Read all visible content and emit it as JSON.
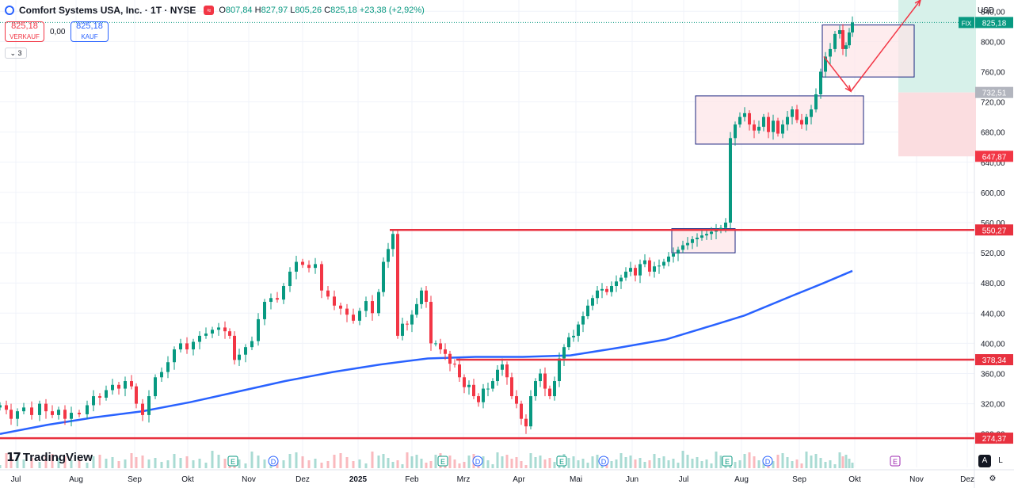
{
  "header": {
    "title": "Comfort Systems USA, Inc. · 1T · NYSE",
    "badge": "≈",
    "ohlc": {
      "o_label": "O",
      "o": "807,84",
      "h_label": "H",
      "h": "827,97",
      "l_label": "L",
      "l": "805,26",
      "c_label": "C",
      "c": "825,18",
      "change": "+23,38 (+2,92%)"
    }
  },
  "trade": {
    "sell_price": "825,18",
    "sell_label": "VERKAUF",
    "spread": "0,00",
    "buy_price": "825,18",
    "buy_label": "KAUF"
  },
  "indicator_toggle": "3",
  "brand": {
    "name": "TradingView",
    "mark": "17"
  },
  "currency": "USD",
  "corner": {
    "auto": "A",
    "log": "L"
  },
  "colors": {
    "up": "#089981",
    "down": "#f23645",
    "ma": "#2962ff",
    "level": "#e8313f",
    "box_border": "#1a237e",
    "box_fill": "#fde4e7",
    "profit": "#d7f1ea",
    "loss": "#fbdde0",
    "grid": "#f0f3fa",
    "text": "#131722"
  },
  "chart_data": {
    "type": "candlestick",
    "x": [
      "Jul",
      "Aug",
      "Sep",
      "Okt",
      "Nov",
      "Dez",
      "2025",
      "Feb",
      "Mrz",
      "Apr",
      "Mai",
      "Jun",
      "Jul",
      "Aug",
      "Sep",
      "Okt",
      "Nov",
      "Dez"
    ],
    "y_ticks": [
      "840,00",
      "800,00",
      "760,00",
      "720,00",
      "680,00",
      "640,00",
      "600,00",
      "560,00",
      "520,00",
      "480,00",
      "440,00",
      "400,00",
      "360,00",
      "320,00",
      "280,00"
    ],
    "ylim": [
      265,
      855
    ],
    "price_path": [
      [
        0,
        318
      ],
      [
        8,
        312
      ],
      [
        14,
        300
      ],
      [
        22,
        310
      ],
      [
        30,
        315
      ],
      [
        40,
        305
      ],
      [
        50,
        320
      ],
      [
        58,
        310
      ],
      [
        66,
        305
      ],
      [
        74,
        312
      ],
      [
        82,
        300
      ],
      [
        90,
        308
      ],
      [
        100,
        306
      ],
      [
        110,
        318
      ],
      [
        118,
        330
      ],
      [
        126,
        328
      ],
      [
        134,
        338
      ],
      [
        142,
        345
      ],
      [
        150,
        340
      ],
      [
        158,
        350
      ],
      [
        166,
        343
      ],
      [
        172,
        320
      ],
      [
        180,
        305
      ],
      [
        188,
        330
      ],
      [
        196,
        355
      ],
      [
        204,
        362
      ],
      [
        212,
        375
      ],
      [
        220,
        392
      ],
      [
        228,
        400
      ],
      [
        236,
        392
      ],
      [
        244,
        402
      ],
      [
        252,
        410
      ],
      [
        260,
        413
      ],
      [
        268,
        418
      ],
      [
        276,
        421
      ],
      [
        284,
        416
      ],
      [
        290,
        410
      ],
      [
        296,
        378
      ],
      [
        302,
        385
      ],
      [
        310,
        395
      ],
      [
        318,
        403
      ],
      [
        326,
        432
      ],
      [
        334,
        455
      ],
      [
        342,
        460
      ],
      [
        350,
        458
      ],
      [
        358,
        476
      ],
      [
        366,
        495
      ],
      [
        374,
        508
      ],
      [
        382,
        504
      ],
      [
        390,
        500
      ],
      [
        398,
        505
      ],
      [
        406,
        470
      ],
      [
        414,
        462
      ],
      [
        422,
        450
      ],
      [
        430,
        446
      ],
      [
        438,
        438
      ],
      [
        446,
        430
      ],
      [
        454,
        443
      ],
      [
        462,
        456
      ],
      [
        470,
        440
      ],
      [
        478,
        468
      ],
      [
        484,
        508
      ],
      [
        490,
        525
      ],
      [
        496,
        545
      ],
      [
        502,
        410
      ],
      [
        508,
        426
      ],
      [
        514,
        425
      ],
      [
        520,
        438
      ],
      [
        526,
        452
      ],
      [
        532,
        470
      ],
      [
        538,
        455
      ],
      [
        544,
        400
      ],
      [
        550,
        400
      ],
      [
        556,
        392
      ],
      [
        562,
        386
      ],
      [
        568,
        373
      ],
      [
        574,
        372
      ],
      [
        580,
        355
      ],
      [
        586,
        342
      ],
      [
        592,
        345
      ],
      [
        598,
        330
      ],
      [
        604,
        322
      ],
      [
        610,
        340
      ],
      [
        616,
        340
      ],
      [
        622,
        350
      ],
      [
        628,
        365
      ],
      [
        634,
        372
      ],
      [
        640,
        355
      ],
      [
        646,
        330
      ],
      [
        652,
        320
      ],
      [
        658,
        300
      ],
      [
        664,
        290
      ],
      [
        670,
        330
      ],
      [
        676,
        350
      ],
      [
        682,
        360
      ],
      [
        688,
        340
      ],
      [
        694,
        330
      ],
      [
        700,
        350
      ],
      [
        706,
        380
      ],
      [
        712,
        395
      ],
      [
        718,
        408
      ],
      [
        724,
        410
      ],
      [
        730,
        425
      ],
      [
        736,
        436
      ],
      [
        742,
        450
      ],
      [
        748,
        460
      ],
      [
        754,
        470
      ],
      [
        760,
        472
      ],
      [
        766,
        468
      ],
      [
        772,
        476
      ],
      [
        778,
        482
      ],
      [
        784,
        487
      ],
      [
        790,
        495
      ],
      [
        796,
        500
      ],
      [
        802,
        490
      ],
      [
        808,
        505
      ],
      [
        814,
        510
      ],
      [
        820,
        495
      ],
      [
        826,
        502
      ],
      [
        832,
        503
      ],
      [
        838,
        508
      ],
      [
        844,
        515
      ],
      [
        850,
        519
      ],
      [
        856,
        524
      ],
      [
        862,
        530
      ],
      [
        868,
        533
      ],
      [
        874,
        538
      ],
      [
        880,
        540
      ],
      [
        886,
        543
      ],
      [
        892,
        545
      ],
      [
        898,
        548
      ],
      [
        904,
        550
      ],
      [
        910,
        553
      ],
      [
        916,
        560
      ],
      [
        922,
        672
      ],
      [
        928,
        690
      ],
      [
        934,
        700
      ],
      [
        940,
        705
      ],
      [
        946,
        690
      ],
      [
        952,
        682
      ],
      [
        958,
        687
      ],
      [
        964,
        700
      ],
      [
        970,
        680
      ],
      [
        976,
        695
      ],
      [
        982,
        678
      ],
      [
        988,
        690
      ],
      [
        994,
        700
      ],
      [
        1000,
        710
      ],
      [
        1006,
        696
      ],
      [
        1012,
        690
      ],
      [
        1018,
        700
      ],
      [
        1024,
        710
      ],
      [
        1030,
        730
      ],
      [
        1036,
        760
      ],
      [
        1042,
        780
      ],
      [
        1048,
        790
      ],
      [
        1054,
        810
      ],
      [
        1060,
        815
      ],
      [
        1064,
        790
      ],
      [
        1068,
        795
      ],
      [
        1072,
        812
      ],
      [
        1076,
        825.18
      ]
    ],
    "moving_average": [
      [
        0,
        280
      ],
      [
        60,
        292
      ],
      [
        120,
        302
      ],
      [
        180,
        310
      ],
      [
        240,
        322
      ],
      [
        300,
        336
      ],
      [
        360,
        350
      ],
      [
        420,
        362
      ],
      [
        480,
        372
      ],
      [
        540,
        380
      ],
      [
        600,
        382
      ],
      [
        660,
        382
      ],
      [
        720,
        384
      ],
      [
        780,
        394
      ],
      [
        840,
        405
      ],
      [
        900,
        424
      ],
      [
        940,
        437
      ],
      [
        1000,
        463
      ],
      [
        1040,
        480
      ],
      [
        1076,
        496
      ]
    ],
    "levels": [
      {
        "price": 550.27,
        "label": "550,27",
        "x_start": 492
      },
      {
        "price": 378.34,
        "label": "378,34",
        "x_start": 576
      },
      {
        "price": 274.37,
        "label": "274,37",
        "x_start": 0
      }
    ],
    "axis_labels": [
      {
        "price": 825.18,
        "label": "825,18",
        "kind": "last"
      },
      {
        "price": 732.51,
        "label": "732,51",
        "kind": "neutral"
      },
      {
        "price": 647.87,
        "label": "647,87",
        "kind": "loss"
      }
    ],
    "last_tag": "FIX",
    "boxes": [
      {
        "x1": 848,
        "x2": 928,
        "top": 552,
        "bottom": 520
      },
      {
        "x1": 878,
        "x2": 1090,
        "top": 728,
        "bottom": 664
      },
      {
        "x1": 1038,
        "x2": 1154,
        "top": 822,
        "bottom": 753
      }
    ],
    "position_zone": {
      "x1": 1134,
      "x2": 1232,
      "entry": 732.51,
      "target": 855,
      "stop": 647.87
    },
    "arrows": [
      {
        "from": [
          1040,
          780
        ],
        "to": [
          1074,
          734
        ]
      },
      {
        "from": [
          1074,
          734
        ],
        "to": [
          1162,
          855
        ]
      }
    ],
    "events": [
      {
        "x": 294,
        "kind": "E"
      },
      {
        "x": 345,
        "kind": "D"
      },
      {
        "x": 559,
        "kind": "E"
      },
      {
        "x": 603,
        "kind": "D"
      },
      {
        "x": 709,
        "kind": "E"
      },
      {
        "x": 762,
        "kind": "D"
      },
      {
        "x": 918,
        "kind": "E"
      },
      {
        "x": 969,
        "kind": "D"
      },
      {
        "x": 1130,
        "kind": "E"
      }
    ]
  }
}
